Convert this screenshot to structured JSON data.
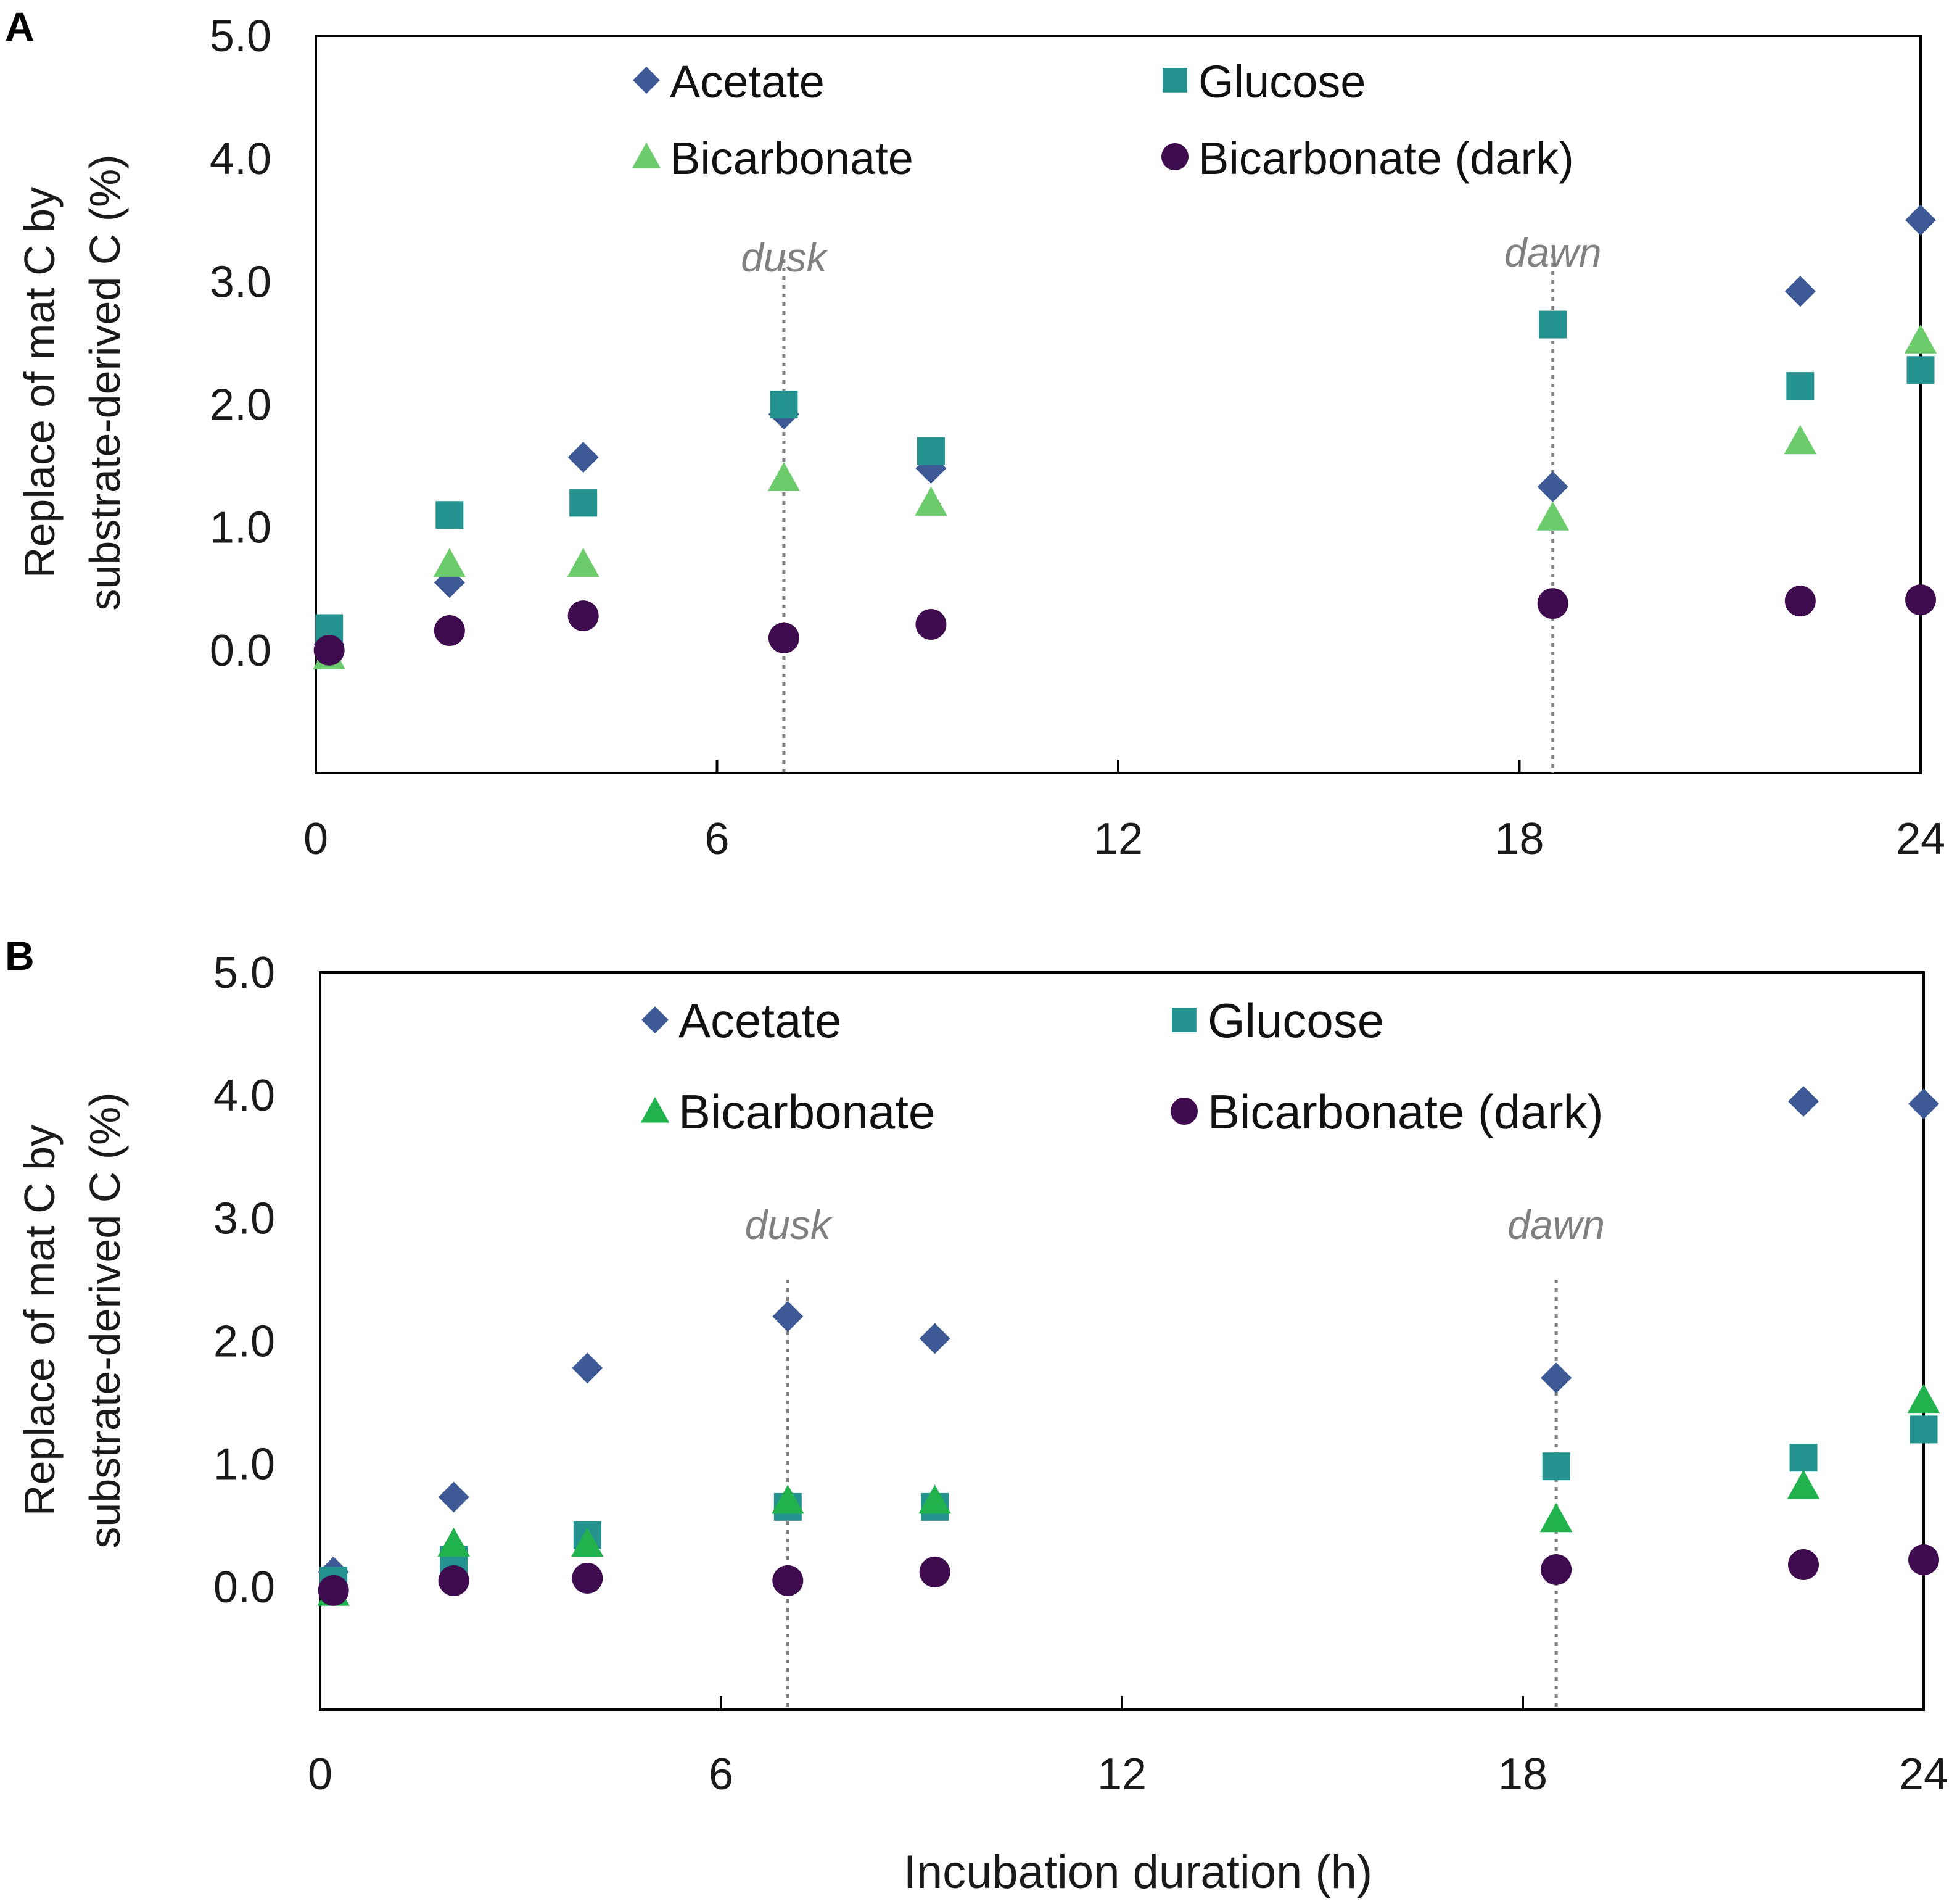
{
  "figure": {
    "xlabel": "Incubation duration (h)"
  },
  "chart_data": [
    {
      "panel": "A",
      "type": "scatter",
      "ylabel_line1": "Replace of mat C by",
      "ylabel_line2": "substrate-derived C (%)",
      "xlim": [
        0,
        24
      ],
      "ylim": [
        -1.0,
        5.0
      ],
      "xticks": [
        "0",
        "6",
        "12",
        "18",
        "24"
      ],
      "xtick_values": [
        0,
        6,
        12,
        18,
        24
      ],
      "yticks": [
        "5.0",
        "4.0",
        "3.0",
        "2.0",
        "1.0",
        "0.0"
      ],
      "ytick_values": [
        5,
        4,
        3,
        2,
        1,
        0
      ],
      "annotations": [
        {
          "text": "dusk",
          "x": 7.0
        },
        {
          "text": "dawn",
          "x": 18.5
        }
      ],
      "series": [
        {
          "name": "Acetate",
          "marker": "diamond",
          "color": "#3d5a96",
          "x": [
            0.2,
            2.0,
            4.0,
            7.0,
            9.2,
            18.5,
            22.2,
            24.0
          ],
          "y": [
            0.05,
            0.55,
            1.57,
            1.92,
            1.48,
            1.33,
            2.92,
            3.5
          ]
        },
        {
          "name": "Glucose",
          "marker": "square",
          "color": "#24938f",
          "x": [
            0.2,
            2.0,
            4.0,
            7.0,
            9.2,
            18.5,
            22.2,
            24.0
          ],
          "y": [
            0.18,
            1.1,
            1.2,
            2.0,
            1.62,
            2.65,
            2.15,
            2.28
          ]
        },
        {
          "name": "Bicarbonate",
          "marker": "triangle",
          "color": "#6ccb6a",
          "x": [
            0.2,
            2.0,
            4.0,
            7.0,
            9.2,
            18.5,
            22.2,
            24.0
          ],
          "y": [
            -0.05,
            0.7,
            0.7,
            1.4,
            1.2,
            1.08,
            1.7,
            2.52
          ]
        },
        {
          "name": "Bicarbonate (dark)",
          "marker": "circle",
          "color": "#3e0b4e",
          "x": [
            0.2,
            2.0,
            4.0,
            7.0,
            9.2,
            18.5,
            22.2,
            24.0
          ],
          "y": [
            0.0,
            0.16,
            0.28,
            0.1,
            0.21,
            0.38,
            0.4,
            0.41
          ]
        }
      ]
    },
    {
      "panel": "B",
      "type": "scatter",
      "ylabel_line1": "Replace of mat C by",
      "ylabel_line2": "substrate-derived C (%)",
      "xlim": [
        0,
        24
      ],
      "ylim": [
        -1.0,
        5.0
      ],
      "xticks": [
        "0",
        "6",
        "12",
        "18",
        "24"
      ],
      "xtick_values": [
        0,
        6,
        12,
        18,
        24
      ],
      "yticks": [
        "5.0",
        "4.0",
        "3.0",
        "2.0",
        "1.0",
        "0.0"
      ],
      "ytick_values": [
        5,
        4,
        3,
        2,
        1,
        0
      ],
      "annotations": [
        {
          "text": "dusk",
          "x": 7.0
        },
        {
          "text": "dawn",
          "x": 18.5
        }
      ],
      "series": [
        {
          "name": "Acetate",
          "marker": "diamond",
          "color": "#3d5a96",
          "x": [
            0.2,
            2.0,
            4.0,
            7.0,
            9.2,
            18.5,
            22.2,
            24.0
          ],
          "y": [
            0.12,
            0.73,
            1.78,
            2.2,
            2.02,
            1.7,
            3.95,
            3.93
          ]
        },
        {
          "name": "Glucose",
          "marker": "square",
          "color": "#24938f",
          "x": [
            0.2,
            2.0,
            4.0,
            7.0,
            9.2,
            18.5,
            22.2,
            24.0
          ],
          "y": [
            0.05,
            0.22,
            0.42,
            0.65,
            0.65,
            0.98,
            1.05,
            1.28
          ]
        },
        {
          "name": "Bicarbonate",
          "marker": "triangle",
          "color": "#21b24d",
          "x": [
            0.2,
            2.0,
            4.0,
            7.0,
            9.2,
            18.5,
            22.2,
            24.0
          ],
          "y": [
            -0.05,
            0.35,
            0.35,
            0.7,
            0.7,
            0.55,
            0.82,
            1.52
          ]
        },
        {
          "name": "Bicarbonate (dark)",
          "marker": "circle",
          "color": "#3e0b4e",
          "x": [
            0.2,
            2.0,
            4.0,
            7.0,
            9.2,
            18.5,
            22.2,
            24.0
          ],
          "y": [
            -0.03,
            0.05,
            0.07,
            0.05,
            0.12,
            0.14,
            0.18,
            0.22
          ]
        }
      ]
    }
  ]
}
